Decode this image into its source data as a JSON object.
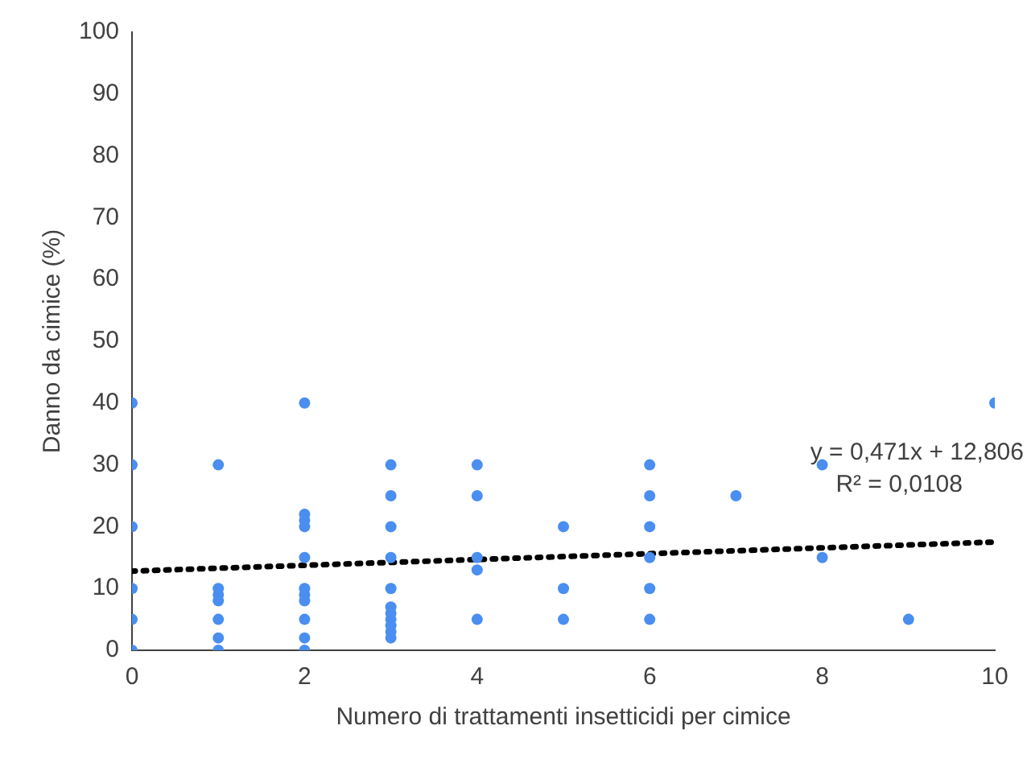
{
  "chart_data": {
    "type": "scatter",
    "xlabel": "Numero di trattamenti insetticidi per cimice",
    "ylabel": "Danno da cimice (%)",
    "xlim": [
      0,
      10
    ],
    "xticks": [
      0,
      2,
      4,
      6,
      8,
      10
    ],
    "ylim": [
      0,
      100
    ],
    "yticks": [
      0,
      10,
      20,
      30,
      40,
      50,
      60,
      70,
      80,
      90,
      100
    ],
    "grid": false,
    "legend": false,
    "marker": "circle",
    "series": [
      {
        "color": "#4a8ef0",
        "x": [
          0,
          0,
          0,
          0,
          0,
          0,
          1,
          1,
          1,
          1,
          1,
          1,
          1,
          2,
          2,
          2,
          2,
          2,
          2,
          2,
          2,
          2,
          2,
          2,
          3,
          3,
          3,
          3,
          3,
          3,
          3,
          3,
          3,
          3,
          3,
          4,
          4,
          4,
          4,
          4,
          5,
          5,
          5,
          6,
          6,
          6,
          6,
          6,
          6,
          7,
          8,
          8,
          9,
          10
        ],
        "values": [
          0,
          5,
          10,
          20,
          30,
          40,
          0,
          2,
          5,
          8,
          9,
          10,
          30,
          0,
          2,
          5,
          8,
          9,
          10,
          15,
          20,
          21,
          22,
          40,
          2,
          3,
          4,
          5,
          6,
          7,
          10,
          15,
          20,
          25,
          30,
          5,
          13,
          15,
          25,
          30,
          5,
          10,
          20,
          5,
          10,
          15,
          20,
          25,
          30,
          25,
          15,
          30,
          5,
          40
        ]
      },
      {
        "type": "line",
        "color": "#000000",
        "line_style": "dotted",
        "marker": "none",
        "x": [
          0,
          10
        ],
        "values": [
          12.806,
          17.516
        ]
      }
    ],
    "annotations": [
      "y = 0,471x + 12,806",
      "R² = 0,0108"
    ]
  }
}
